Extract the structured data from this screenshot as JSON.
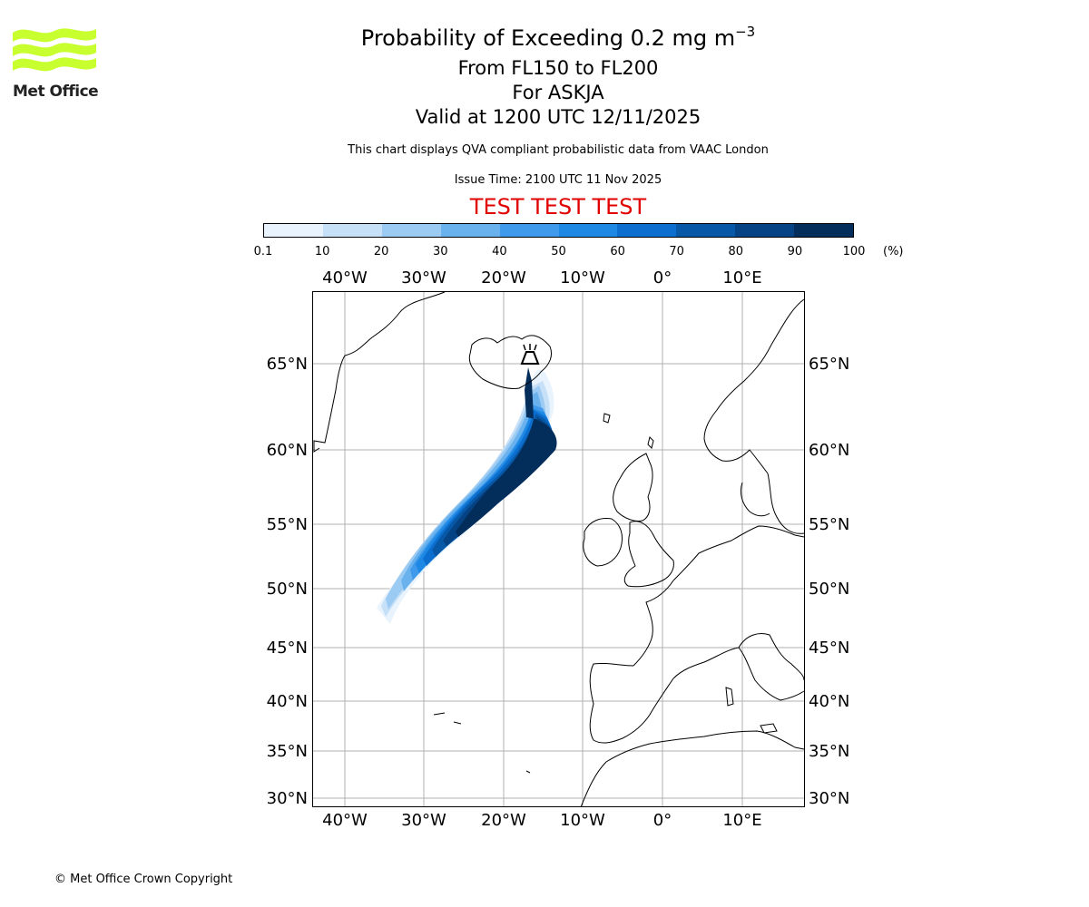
{
  "title": {
    "line1": "Probability of Exceeding 0.2 mg m",
    "line1_exponent": "−3",
    "line2": "From FL150 to FL200",
    "line3": "For ASKJA",
    "line4": "Valid at 1200 UTC 12/11/2025"
  },
  "disclaimer": "This chart displays QVA compliant probabilistic data from VAAC London",
  "issue_time": "Issue Time: 2100 UTC 11 Nov 2025",
  "test_banner": "TEST TEST TEST",
  "logo_text": "Met Office",
  "copyright": "© Met Office Crown Copyright",
  "colorbar": {
    "unit": "(%)",
    "ticks": [
      "0.1",
      "10",
      "20",
      "30",
      "40",
      "50",
      "60",
      "70",
      "80",
      "90",
      "100"
    ],
    "colors": [
      "#e8f3fd",
      "#c6e0f7",
      "#9bcaf2",
      "#6ab2ee",
      "#3f9aeb",
      "#1e88e5",
      "#0c6fcf",
      "#0858a8",
      "#064384",
      "#032e5c"
    ]
  },
  "map": {
    "volcano": "ASKJA",
    "lon_labels": [
      "40°W",
      "30°W",
      "20°W",
      "10°W",
      "0°",
      "10°E"
    ],
    "lat_labels": [
      "65°N",
      "60°N",
      "55°N",
      "50°N",
      "45°N",
      "40°N",
      "35°N",
      "30°N"
    ]
  }
}
